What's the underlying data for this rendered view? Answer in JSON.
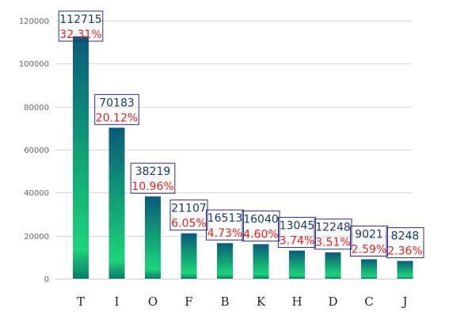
{
  "chart_data": {
    "type": "bar",
    "categories": [
      "T",
      "I",
      "O",
      "F",
      "B",
      "K",
      "H",
      "D",
      "C",
      "J"
    ],
    "values": [
      112715,
      70183,
      38219,
      21107,
      16513,
      16040,
      13045,
      12248,
      9021,
      8248
    ],
    "percent_labels": [
      "32.31%",
      "20.12%",
      "10.96%",
      "6.05%",
      "4.73%",
      "4.60%",
      "3.74%",
      "3.51%",
      "2.59%",
      "2.36%"
    ],
    "y_ticks": [
      "0",
      "20000",
      "40000",
      "60000",
      "80000",
      "100000",
      "120000"
    ],
    "ylim": [
      0,
      120000
    ],
    "grid": true,
    "legend": "none",
    "colors": {
      "bar_top": "#0b5a7a",
      "bar_bottom": "#1fd37a",
      "percent_text": "#e8201c",
      "value_text": "#1a3a6a",
      "box_stroke": "#2a2a8a"
    }
  }
}
